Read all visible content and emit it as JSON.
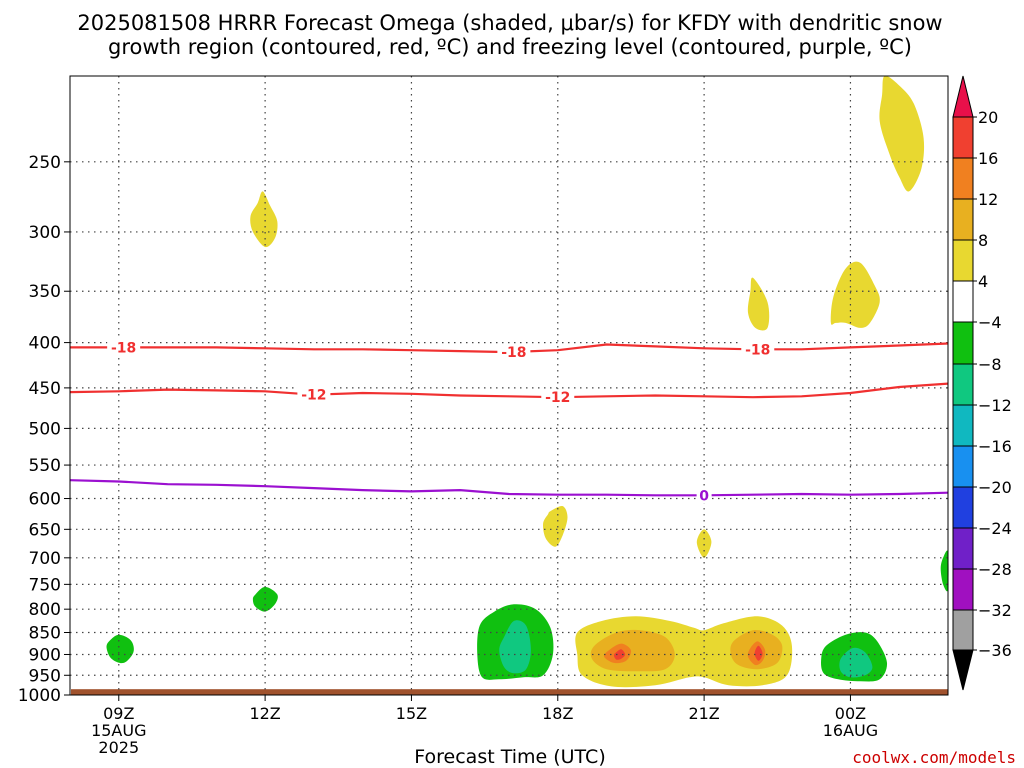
{
  "title_line1": "2025081508 HRRR Forecast Omega (shaded, μbar/s) for KFDY with dendritic snow",
  "title_line2": "growth region (contoured, red, ºC) and freezing level (contoured, purple, ºC)",
  "credit": "coolwx.com/models",
  "chart_data": {
    "type": "time-height cross section",
    "title": "2025081508 HRRR Forecast Omega (shaded, μbar/s) for KFDY with dendritic snow growth region (contoured, red, ºC) and freezing level (contoured, purple, ºC)",
    "xlabel": "Forecast Time (UTC)",
    "ylabel": "",
    "y_scale": "log-pressure",
    "ylim": [
      1000,
      200
    ],
    "xlim": [
      8,
      26
    ],
    "grid": true,
    "y_ticks": [
      250,
      300,
      350,
      400,
      450,
      500,
      550,
      600,
      650,
      700,
      750,
      800,
      850,
      900,
      950,
      1000
    ],
    "x_ticks": [
      {
        "x": 9,
        "labels": [
          "09Z",
          "15AUG",
          "2025"
        ]
      },
      {
        "x": 12,
        "labels": [
          "12Z"
        ]
      },
      {
        "x": 15,
        "labels": [
          "15Z"
        ]
      },
      {
        "x": 18,
        "labels": [
          "18Z"
        ]
      },
      {
        "x": 21,
        "labels": [
          "21Z"
        ]
      },
      {
        "x": 24,
        "labels": [
          "00Z",
          "16AUG"
        ]
      }
    ],
    "colorbar": {
      "labels": [
        "20",
        "16",
        "12",
        "8",
        "4",
        "-4",
        "-8",
        "-12",
        "-16",
        "-20",
        "-24",
        "-28",
        "-32",
        "-36"
      ],
      "colors": [
        "#e8104a",
        "#f04030",
        "#f08020",
        "#e8b020",
        "#e8d830",
        "#ffffff",
        "#10c010",
        "#10c880",
        "#10b8c0",
        "#1890f0",
        "#2040e0",
        "#7020c8",
        "#a010c0",
        "#a0a0a0",
        "#000000"
      ]
    },
    "omega_areas": [
      {
        "level": 4,
        "color": "#e8d830",
        "x": [
          23.9,
          24.2,
          24.4,
          24.6,
          24.5,
          24.2,
          23.9,
          23.65,
          23.6,
          23.7
        ],
        "p": [
          380,
          385,
          380,
          360,
          345,
          325,
          330,
          355,
          380,
          380
        ]
      },
      {
        "level": 4,
        "color": "#e8d830",
        "x": [
          24.7,
          25.0,
          25.3,
          25.5,
          25.45,
          25.2,
          25.0,
          24.8,
          24.6,
          24.65
        ],
        "p": [
          200,
          205,
          215,
          235,
          255,
          270,
          260,
          245,
          225,
          210
        ]
      },
      {
        "level": 4,
        "color": "#e8d830",
        "x": [
          11.95,
          12.1,
          12.25,
          12.2,
          12.0,
          11.75,
          11.7,
          11.85
        ],
        "p": [
          270,
          280,
          292,
          305,
          312,
          300,
          288,
          278
        ]
      },
      {
        "level": 4,
        "color": "#e8d830",
        "x": [
          22.0,
          22.3,
          22.3,
          22.05,
          21.9,
          21.95
        ],
        "p": [
          338,
          360,
          385,
          385,
          370,
          350
        ]
      },
      {
        "level": 4,
        "color": "#e8d830",
        "x": [
          17.85,
          18.1,
          18.2,
          18.1,
          17.95,
          17.75,
          17.7,
          17.8
        ],
        "p": [
          620,
          612,
          630,
          660,
          680,
          665,
          640,
          625
        ]
      },
      {
        "level": 4,
        "color": "#e8d830",
        "x": [
          21.0,
          21.15,
          21.0,
          20.85
        ],
        "p": [
          650,
          672,
          700,
          672
        ]
      },
      {
        "level": 4,
        "color": "#e8d830",
        "x": [
          18.4,
          18.9,
          19.6,
          20.3,
          20.8,
          21.0,
          21.4,
          22.1,
          22.6,
          22.8,
          22.7,
          22.2,
          21.5,
          21.0,
          20.7,
          20.0,
          19.1,
          18.5,
          18.4
        ],
        "p": [
          850,
          825,
          815,
          825,
          840,
          845,
          830,
          815,
          835,
          880,
          950,
          975,
          975,
          955,
          955,
          975,
          978,
          950,
          900
        ]
      },
      {
        "level": -4,
        "color": "#10c010",
        "x": [
          8.8,
          9.0,
          9.25,
          9.3,
          9.1,
          8.85,
          8.75
        ],
        "p": [
          870,
          855,
          868,
          895,
          920,
          910,
          885
        ]
      },
      {
        "level": -4,
        "color": "#10c010",
        "x": [
          11.8,
          12.0,
          12.25,
          12.2,
          12.0,
          11.8,
          11.75
        ],
        "p": [
          770,
          755,
          770,
          790,
          805,
          795,
          780
        ]
      },
      {
        "level": -4,
        "color": "#10c010",
        "x": [
          16.4,
          16.7,
          17.1,
          17.55,
          17.85,
          17.9,
          17.7,
          17.3,
          16.8,
          16.45,
          16.35
        ],
        "p": [
          835,
          805,
          790,
          800,
          840,
          900,
          950,
          955,
          960,
          955,
          900
        ]
      },
      {
        "level": -4,
        "color": "#10c010",
        "x": [
          25.9,
          26.0,
          26.0,
          25.9,
          25.85
        ],
        "p": [
          700,
          690,
          760,
          750,
          720
        ]
      },
      {
        "level": -4,
        "color": "#10c010",
        "x": [
          23.5,
          23.9,
          24.3,
          24.55,
          24.75,
          24.6,
          24.2,
          23.75,
          23.45,
          23.4
        ],
        "p": [
          880,
          855,
          850,
          870,
          920,
          960,
          965,
          960,
          945,
          910
        ]
      },
      {
        "level": -8,
        "color": "#10c880",
        "x": [
          16.9,
          17.1,
          17.35,
          17.45,
          17.35,
          17.1,
          16.9,
          16.8
        ],
        "p": [
          860,
          825,
          835,
          890,
          935,
          945,
          930,
          890
        ]
      },
      {
        "level": -8,
        "color": "#10c880",
        "x": [
          23.8,
          24.05,
          24.3,
          24.45,
          24.3,
          24.0,
          23.8
        ],
        "p": [
          910,
          885,
          895,
          930,
          950,
          955,
          940
        ]
      },
      {
        "level": 8,
        "color": "#e8b020",
        "x": [
          18.75,
          19.2,
          19.7,
          20.2,
          20.4,
          20.2,
          19.6,
          19.0,
          18.7
        ],
        "p": [
          880,
          850,
          845,
          860,
          900,
          935,
          940,
          935,
          910
        ]
      },
      {
        "level": 8,
        "color": "#e8b020",
        "x": [
          21.6,
          22.0,
          22.4,
          22.6,
          22.5,
          22.1,
          21.7,
          21.55
        ],
        "p": [
          870,
          845,
          855,
          880,
          920,
          935,
          925,
          900
        ]
      },
      {
        "level": 12,
        "color": "#f08020",
        "x": [
          19.05,
          19.3,
          19.5,
          19.4,
          19.15,
          18.95
        ],
        "p": [
          890,
          875,
          890,
          915,
          920,
          905
        ]
      },
      {
        "level": 12,
        "color": "#f08020",
        "x": [
          21.95,
          22.1,
          22.25,
          22.2,
          22.05,
          21.9
        ],
        "p": [
          885,
          870,
          890,
          915,
          925,
          905
        ]
      },
      {
        "level": 16,
        "color": "#f04030",
        "x": [
          19.2,
          19.3,
          19.38,
          19.3,
          19.2,
          19.15
        ],
        "p": [
          895,
          888,
          900,
          910,
          912,
          902
        ]
      },
      {
        "level": 16,
        "color": "#f04030",
        "x": [
          22.05,
          22.12,
          22.2,
          22.12,
          22.04
        ],
        "p": [
          890,
          880,
          898,
          915,
          902
        ]
      }
    ],
    "ground": {
      "color": "#a0522d",
      "p_top": 985
    },
    "contours": [
      {
        "level": -18,
        "label": "-18",
        "color": "#f03030",
        "x": [
          8.0,
          9.0,
          10.0,
          11.0,
          12.0,
          13.0,
          14.0,
          15.0,
          16.0,
          17.0,
          18.0,
          19.0,
          20.0,
          21.0,
          22.0,
          23.0,
          24.0,
          25.0,
          26.0
        ],
        "p": [
          405,
          405,
          405,
          405,
          406,
          407,
          407,
          408,
          409,
          410,
          408,
          402,
          404,
          406,
          407,
          407,
          405,
          403,
          401
        ],
        "label_x": [
          9.1,
          17.1,
          22.1
        ]
      },
      {
        "level": -12,
        "label": "-12",
        "color": "#f03030",
        "x": [
          8.0,
          9.0,
          10.0,
          11.0,
          12.0,
          13.0,
          14.0,
          15.0,
          16.0,
          17.0,
          18.0,
          19.0,
          20.0,
          21.0,
          22.0,
          23.0,
          24.0,
          25.0,
          26.0
        ],
        "p": [
          455,
          454,
          452,
          453,
          454,
          458,
          456,
          457,
          459,
          460,
          461,
          460,
          459,
          460,
          461,
          460,
          456,
          449,
          445
        ],
        "label_x": [
          13.0,
          18.0
        ]
      },
      {
        "level": 0,
        "label": "0",
        "color": "#9b10d0",
        "x": [
          8.0,
          9.0,
          10.0,
          11.0,
          12.0,
          13.0,
          14.0,
          15.0,
          16.0,
          17.0,
          18.0,
          19.0,
          20.0,
          21.0,
          22.0,
          23.0,
          24.0,
          25.0,
          26.0
        ],
        "p": [
          572,
          574,
          578,
          579,
          581,
          584,
          587,
          589,
          587,
          593,
          594,
          594,
          595,
          595,
          594,
          593,
          594,
          593,
          591
        ],
        "label_x": [
          21.0
        ]
      }
    ]
  }
}
